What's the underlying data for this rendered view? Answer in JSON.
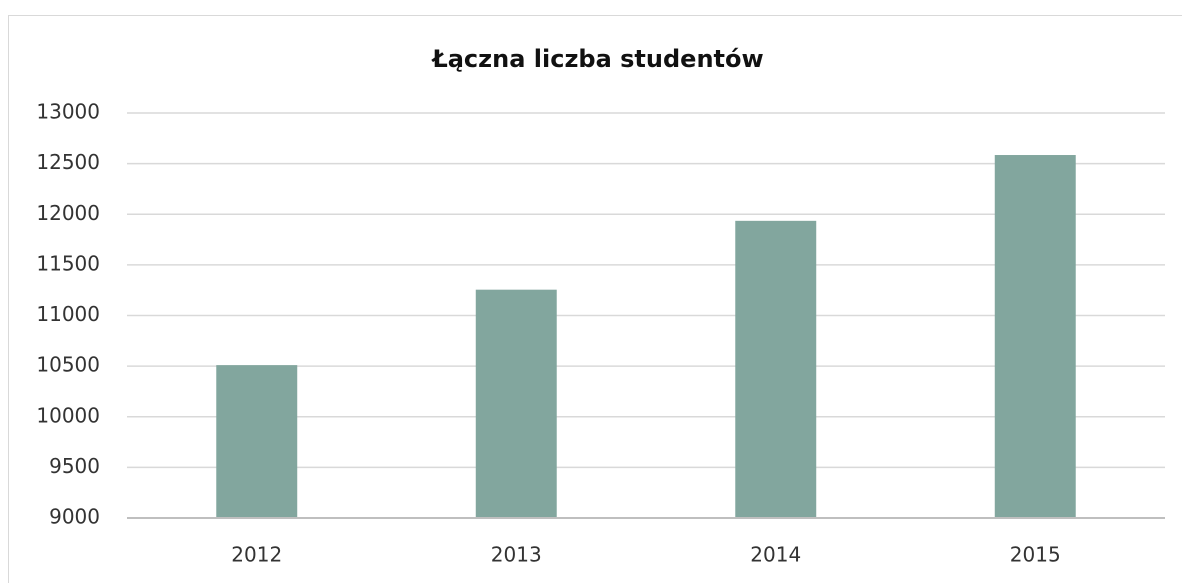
{
  "chart_data": {
    "type": "bar",
    "title": "Łączna liczba studentów",
    "categories": [
      "2012",
      "2013",
      "2014",
      "2015"
    ],
    "values": [
      10510,
      11255,
      11935,
      12585
    ],
    "color": "#82a69e",
    "ylim": [
      9000,
      13000
    ],
    "yticks": [
      9000,
      9500,
      10000,
      10500,
      11000,
      11500,
      12000,
      12500,
      13000
    ],
    "grid": true
  }
}
